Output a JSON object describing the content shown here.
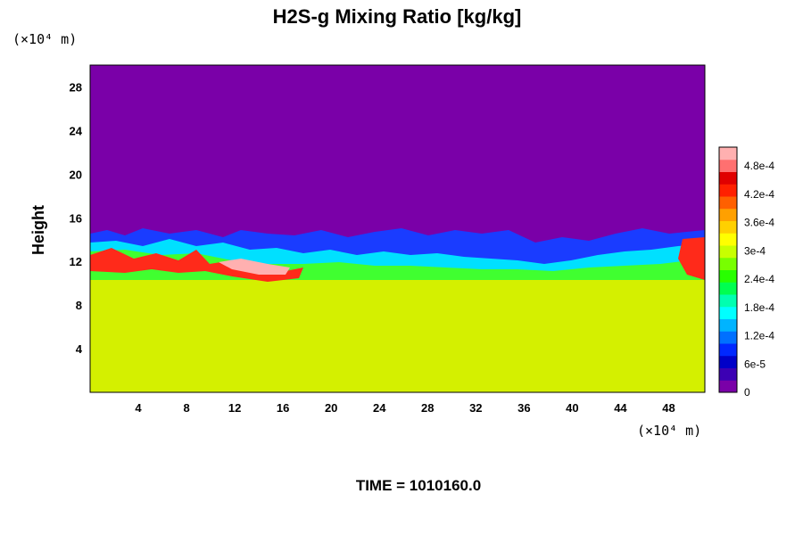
{
  "chart_data": {
    "type": "heatmap",
    "title": "H2S-g Mixing Ratio [kg/kg]",
    "ylabel": "Height",
    "xlabel": "",
    "x_unit": "(×10⁴ m)",
    "y_unit": "(×10⁴ m)",
    "xlim": [
      0,
      51
    ],
    "ylim": [
      0,
      30
    ],
    "x_ticks": [
      4,
      8,
      12,
      16,
      20,
      24,
      28,
      32,
      36,
      40,
      44,
      48
    ],
    "y_ticks": [
      4,
      8,
      12,
      16,
      20,
      24,
      28
    ],
    "colorbar": {
      "min": 0,
      "max": 0.00052,
      "tick_values": [
        0,
        6e-05,
        0.00012,
        0.00018,
        0.00024,
        0.0003,
        0.00036,
        0.00042,
        0.00048
      ],
      "tick_labels": [
        "0",
        "6e-5",
        "1.2e-4",
        "1.8e-4",
        "2.4e-4",
        "3e-4",
        "3.6e-4",
        "4.2e-4",
        "4.8e-4"
      ],
      "colors": [
        "#7a00a8",
        "#3c00b4",
        "#0000c8",
        "#0028ff",
        "#0070ff",
        "#00b4ff",
        "#00ffff",
        "#00ffb0",
        "#00ff50",
        "#28ff00",
        "#78ff00",
        "#c8ff00",
        "#ffff00",
        "#ffd000",
        "#ffa000",
        "#ff6000",
        "#ff2000",
        "#e00000",
        "#ff7070",
        "#ffb0b0"
      ]
    },
    "field_description_values": {
      "upper_region_value": 0,
      "lower_region_value": 0.00035,
      "interface_height_range": [
        11,
        15
      ]
    }
  },
  "footer": {
    "time_text": "TIME = 1010160.0"
  }
}
